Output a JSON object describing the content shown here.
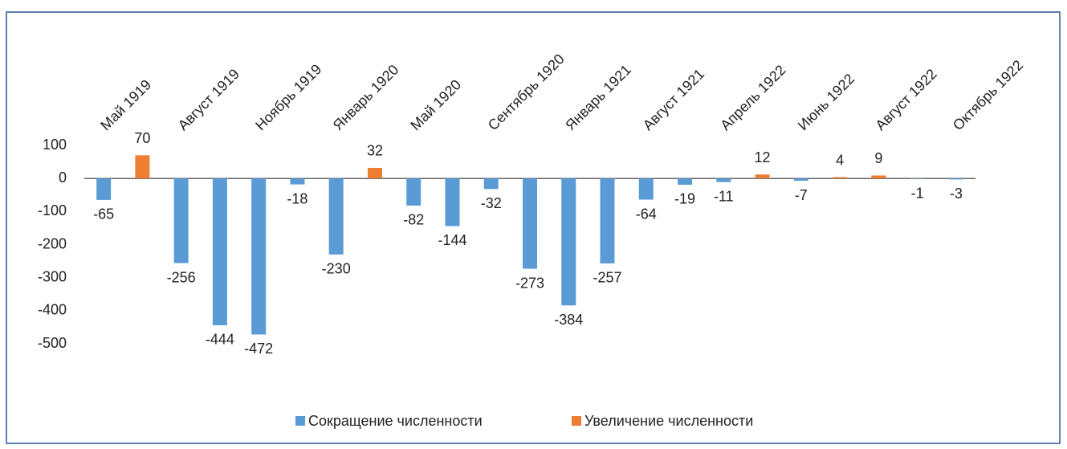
{
  "chart_data": {
    "type": "bar",
    "categories": [
      "Май 1919",
      null,
      "Август 1919",
      null,
      "Ноябрь 1919",
      null,
      "Январь 1920",
      null,
      "Май 1920",
      null,
      "Сентябрь 1920",
      null,
      "Январь 1921",
      null,
      "Август 1921",
      null,
      "Апрель 1922",
      null,
      "Июнь 1922",
      null,
      "Август 1922",
      null,
      "Октябрь 1922"
    ],
    "series": [
      {
        "name": "Сокращение численности",
        "color": "#5b9bd5",
        "values": [
          -65,
          null,
          -256,
          -444,
          -472,
          -18,
          -230,
          null,
          -82,
          -144,
          -32,
          -273,
          -384,
          -257,
          -64,
          -19,
          -11,
          null,
          -7,
          null,
          null,
          -1,
          -3
        ]
      },
      {
        "name": "Увеличение численности",
        "color": "#ed7d31",
        "values": [
          null,
          70,
          null,
          null,
          null,
          null,
          null,
          32,
          null,
          null,
          null,
          null,
          null,
          null,
          null,
          null,
          null,
          12,
          null,
          4,
          9,
          null,
          null
        ]
      }
    ],
    "ylim": [
      -500,
      100
    ],
    "yticks": [
      100,
      0,
      -100,
      -200,
      -300,
      -400,
      -500
    ],
    "legend": "bottom"
  }
}
